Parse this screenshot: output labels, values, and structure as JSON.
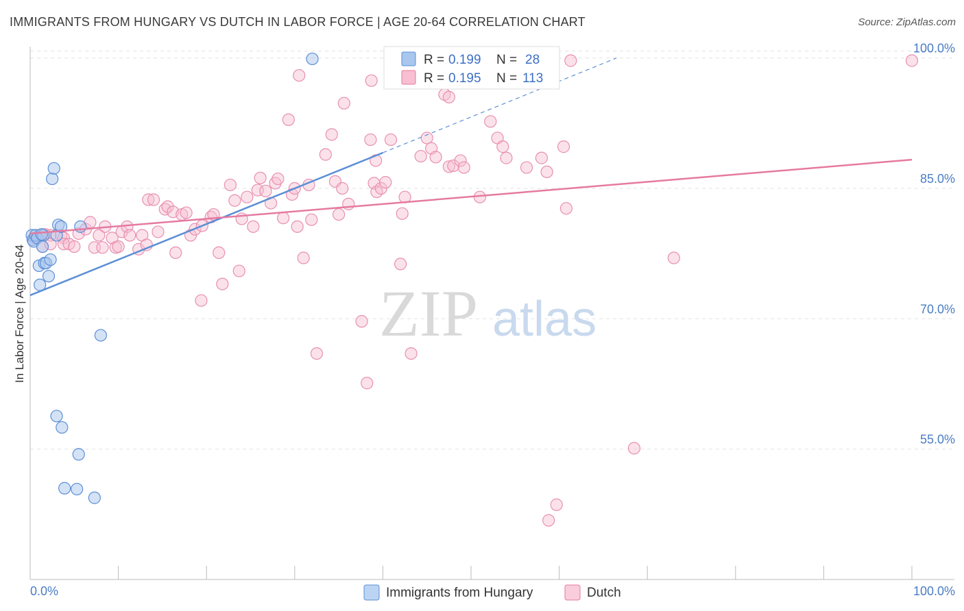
{
  "header": {
    "title": "IMMIGRANTS FROM HUNGARY VS DUTCH IN LABOR FORCE | AGE 20-64 CORRELATION CHART",
    "source": "Source: ZipAtlas.com"
  },
  "watermark": {
    "zip": "ZIP",
    "atlas": "atlas"
  },
  "legend": {
    "rows": [
      {
        "r_label": "R =",
        "r_value": "0.199",
        "n_label": "N =",
        "n_value": "28",
        "color": "#a9c6ee",
        "stroke": "#5b8fd6"
      },
      {
        "r_label": "R =",
        "r_value": "0.195",
        "n_label": "N =",
        "n_value": "113",
        "color": "#f7bfd1",
        "stroke": "#e57aa0"
      }
    ]
  },
  "bottom_legend": {
    "items": [
      {
        "label": "Immigrants from Hungary",
        "color": "#bcd4f3",
        "stroke": "#5b8fd6"
      },
      {
        "label": "Dutch",
        "color": "#f9cddb",
        "stroke": "#e57aa0"
      }
    ]
  },
  "chart_data": {
    "type": "scatter",
    "ylabel": "In Labor Force | Age 20-64",
    "xlim": [
      0,
      100
    ],
    "ylim": [
      40,
      101
    ],
    "x_tick_labels": [
      "0.0%",
      "100.0%"
    ],
    "y_ticks": [
      55,
      70,
      85,
      100
    ],
    "y_tick_labels": [
      "55.0%",
      "70.0%",
      "85.0%",
      "100.0%"
    ],
    "grid": true,
    "colors": {
      "hungary": "#5b8fd6",
      "dutch": "#e57aa0"
    },
    "series": [
      {
        "name": "Immigrants from Hungary",
        "points": [
          [
            0.2,
            79.6
          ],
          [
            0.3,
            79.1
          ],
          [
            0.4,
            78.9
          ],
          [
            0.6,
            79.6
          ],
          [
            0.8,
            79.3
          ],
          [
            1.0,
            76.1
          ],
          [
            1.1,
            73.9
          ],
          [
            1.4,
            78.3
          ],
          [
            1.5,
            79.6
          ],
          [
            1.6,
            76.4
          ],
          [
            1.8,
            76.4
          ],
          [
            2.1,
            74.9
          ],
          [
            2.3,
            76.8
          ],
          [
            2.5,
            86.1
          ],
          [
            2.7,
            87.3
          ],
          [
            3.0,
            79.6
          ],
          [
            3.2,
            80.8
          ],
          [
            3.5,
            80.6
          ],
          [
            5.7,
            80.6
          ],
          [
            8.0,
            68.1
          ],
          [
            3.0,
            58.8
          ],
          [
            3.6,
            57.5
          ],
          [
            5.5,
            54.4
          ],
          [
            3.9,
            50.5
          ],
          [
            5.3,
            50.4
          ],
          [
            7.3,
            49.4
          ],
          [
            32.0,
            99.9
          ],
          [
            1.3,
            79.7
          ]
        ],
        "trend": {
          "x0": 0,
          "y0": 72.7,
          "x1": 40.0,
          "y1": 89.1,
          "dash_to_x": 66.5,
          "dash_to_y": 100.0
        }
      },
      {
        "name": "Dutch",
        "points": [
          [
            0.5,
            79.3
          ],
          [
            1.0,
            79.6
          ],
          [
            1.4,
            78.3
          ],
          [
            1.7,
            79.7
          ],
          [
            2.3,
            79.6
          ],
          [
            2.3,
            78.6
          ],
          [
            3.5,
            79.6
          ],
          [
            3.8,
            79.3
          ],
          [
            3.8,
            78.6
          ],
          [
            4.4,
            78.6
          ],
          [
            5.0,
            78.3
          ],
          [
            5.5,
            79.8
          ],
          [
            6.3,
            80.3
          ],
          [
            6.8,
            81.1
          ],
          [
            7.3,
            78.2
          ],
          [
            7.8,
            79.6
          ],
          [
            8.2,
            78.2
          ],
          [
            8.5,
            80.6
          ],
          [
            9.3,
            79.3
          ],
          [
            9.7,
            78.2
          ],
          [
            10.0,
            78.3
          ],
          [
            10.4,
            80.0
          ],
          [
            11.0,
            80.6
          ],
          [
            11.3,
            79.6
          ],
          [
            12.3,
            78.0
          ],
          [
            12.7,
            79.6
          ],
          [
            13.2,
            78.5
          ],
          [
            13.4,
            83.7
          ],
          [
            14.0,
            83.7
          ],
          [
            14.5,
            80.0
          ],
          [
            15.3,
            82.6
          ],
          [
            15.6,
            82.9
          ],
          [
            16.2,
            82.3
          ],
          [
            16.5,
            77.6
          ],
          [
            17.2,
            82.0
          ],
          [
            17.7,
            82.2
          ],
          [
            18.2,
            79.6
          ],
          [
            18.7,
            80.3
          ],
          [
            19.4,
            72.1
          ],
          [
            19.5,
            80.7
          ],
          [
            20.5,
            81.7
          ],
          [
            20.8,
            82.0
          ],
          [
            21.4,
            77.6
          ],
          [
            21.8,
            74.0
          ],
          [
            22.7,
            85.4
          ],
          [
            23.2,
            83.6
          ],
          [
            23.7,
            75.5
          ],
          [
            24.0,
            81.5
          ],
          [
            24.6,
            84.0
          ],
          [
            25.3,
            80.6
          ],
          [
            25.8,
            84.8
          ],
          [
            26.1,
            86.2
          ],
          [
            26.7,
            84.7
          ],
          [
            27.3,
            83.3
          ],
          [
            27.8,
            85.6
          ],
          [
            28.1,
            86.1
          ],
          [
            28.7,
            81.6
          ],
          [
            29.7,
            84.3
          ],
          [
            30.0,
            85.0
          ],
          [
            30.3,
            80.6
          ],
          [
            31.6,
            85.4
          ],
          [
            31.0,
            77.0
          ],
          [
            31.9,
            81.4
          ],
          [
            32.5,
            66.0
          ],
          [
            33.5,
            88.9
          ],
          [
            34.2,
            91.2
          ],
          [
            35.0,
            82.0
          ],
          [
            34.6,
            85.8
          ],
          [
            35.4,
            85.0
          ],
          [
            36.1,
            83.2
          ],
          [
            37.6,
            69.7
          ],
          [
            38.2,
            62.6
          ],
          [
            38.6,
            90.6
          ],
          [
            39.0,
            85.6
          ],
          [
            39.3,
            84.6
          ],
          [
            39.8,
            85.0
          ],
          [
            40.3,
            85.7
          ],
          [
            40.9,
            90.6
          ],
          [
            42.2,
            82.1
          ],
          [
            42.0,
            76.3
          ],
          [
            42.5,
            84.0
          ],
          [
            43.2,
            66.0
          ],
          [
            44.3,
            88.7
          ],
          [
            45.0,
            90.8
          ],
          [
            45.5,
            89.6
          ],
          [
            46.0,
            88.6
          ],
          [
            47.0,
            95.8
          ],
          [
            47.5,
            87.5
          ],
          [
            48.0,
            87.6
          ],
          [
            48.8,
            88.2
          ],
          [
            49.2,
            87.4
          ],
          [
            51.0,
            84.0
          ],
          [
            52.2,
            92.7
          ],
          [
            53.0,
            90.8
          ],
          [
            53.6,
            89.8
          ],
          [
            54.0,
            88.5
          ],
          [
            56.3,
            87.4
          ],
          [
            58.0,
            88.5
          ],
          [
            58.6,
            86.9
          ],
          [
            60.5,
            89.8
          ],
          [
            60.8,
            82.7
          ],
          [
            61.3,
            99.7
          ],
          [
            47.5,
            95.5
          ],
          [
            38.7,
            97.4
          ],
          [
            30.5,
            98.0
          ],
          [
            59.7,
            48.6
          ],
          [
            58.8,
            46.8
          ],
          [
            68.5,
            55.1
          ],
          [
            73.0,
            77.0
          ],
          [
            100.0,
            99.7
          ],
          [
            29.3,
            92.9
          ],
          [
            39.2,
            88.2
          ],
          [
            35.6,
            94.8
          ]
        ],
        "trend": {
          "x0": 0,
          "y0": 79.8,
          "x1": 100,
          "y1": 88.3
        }
      }
    ]
  }
}
